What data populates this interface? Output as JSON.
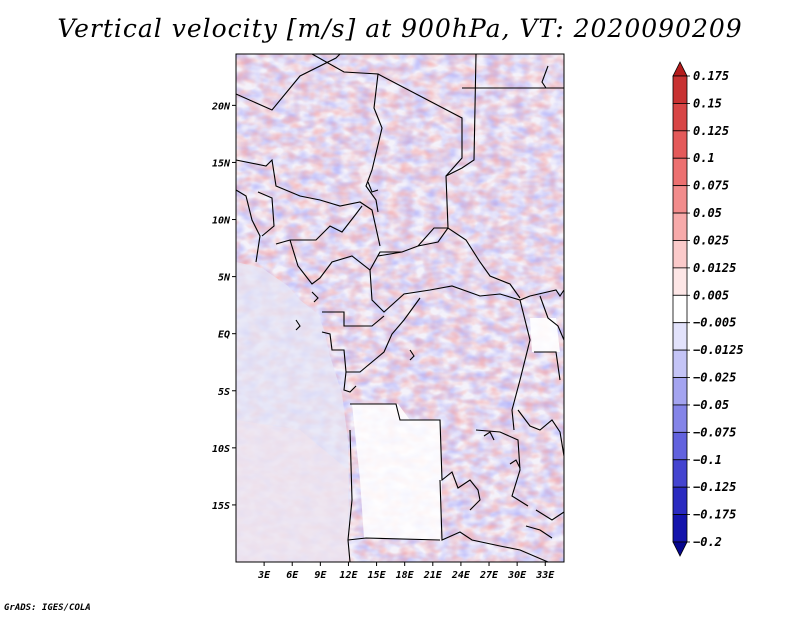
{
  "chart_data": {
    "type": "heatmap",
    "title": "Vertical velocity [m/s] at 900hPa, VT: 2020090209",
    "variable": "Vertical velocity",
    "units": "m/s",
    "level": "900hPa",
    "valid_time": "2020090209",
    "x_axis": {
      "label": "",
      "range": [
        0,
        35
      ],
      "ticks": [
        3,
        6,
        9,
        12,
        15,
        18,
        21,
        24,
        27,
        30,
        33
      ],
      "tick_labels": [
        "3E",
        "6E",
        "9E",
        "12E",
        "15E",
        "18E",
        "21E",
        "24E",
        "27E",
        "30E",
        "33E"
      ]
    },
    "y_axis": {
      "label": "",
      "range": [
        -20,
        24.5
      ],
      "ticks": [
        20,
        15,
        10,
        5,
        0,
        -5,
        -10,
        -15
      ],
      "tick_labels": [
        "20N",
        "15N",
        "10N",
        "5N",
        "EQ",
        "5S",
        "10S",
        "15S"
      ]
    },
    "colorbar": {
      "levels": [
        0.175,
        0.15,
        0.125,
        0.1,
        0.075,
        0.05,
        0.025,
        0.0125,
        0.005,
        -0.005,
        -0.0125,
        -0.025,
        -0.05,
        -0.075,
        -0.1,
        -0.125,
        -0.175,
        -0.2
      ],
      "labels": [
        "0.175",
        "0.15",
        "0.125",
        "0.1",
        "0.075",
        "0.05",
        "0.025",
        "0.0125",
        "0.005",
        "−0.005",
        "−0.0125",
        "−0.025",
        "−0.05",
        "−0.075",
        "−0.1",
        "−0.125",
        "−0.175",
        "−0.2"
      ],
      "colors": [
        "#b41c1c",
        "#c83232",
        "#d84646",
        "#e45a5a",
        "#ec7070",
        "#f28c8c",
        "#f7aaaa",
        "#fbcaca",
        "#fde6e6",
        "#ffffff",
        "#e2e2fb",
        "#c4c4f6",
        "#a4a4f0",
        "#8484e8",
        "#6262de",
        "#4444d0",
        "#2a2ac0",
        "#1414ac",
        "#06068e"
      ]
    }
  },
  "footer": {
    "credit": "GrADS: IGES/COLA"
  },
  "icons": {
    "colorbar_top": "triangle-up-icon",
    "colorbar_bottom": "triangle-down-icon"
  }
}
